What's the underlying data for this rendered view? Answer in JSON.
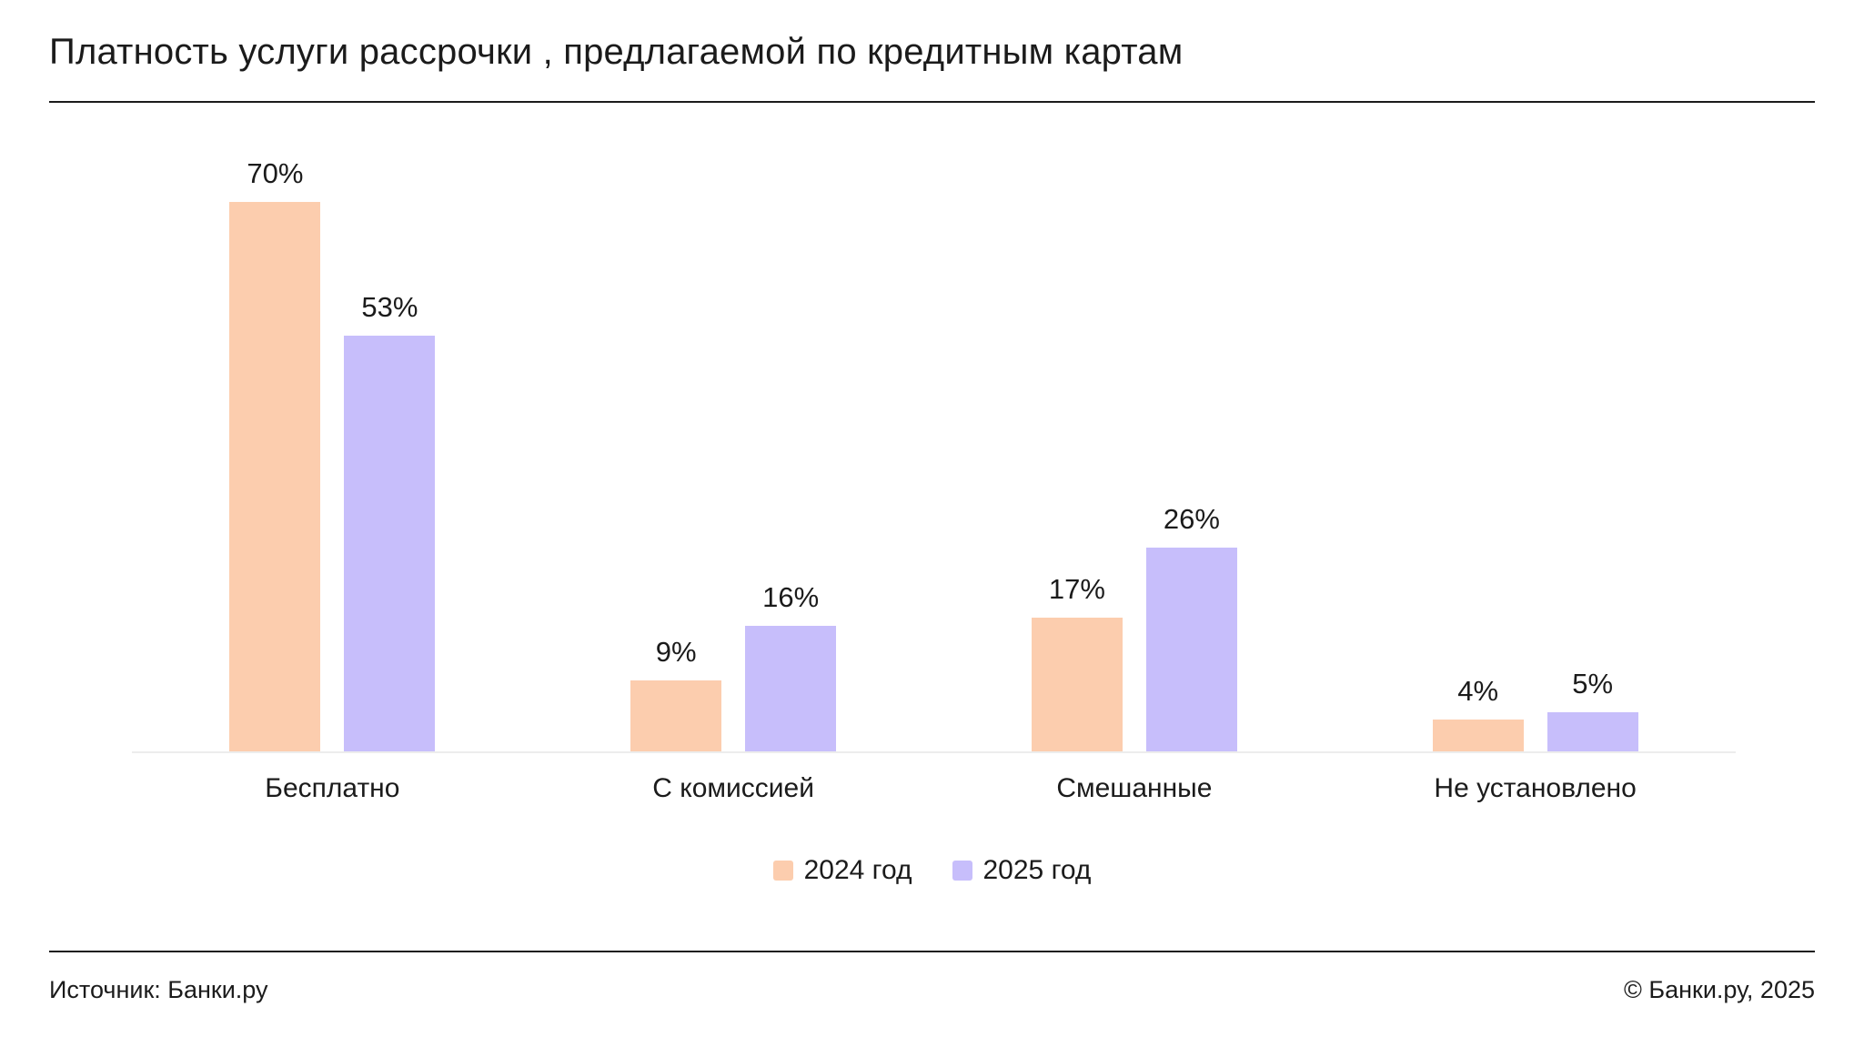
{
  "header": {
    "title": "Платность услуги рассрочки , предлагаемой по кредитным картам"
  },
  "chart_data": {
    "type": "bar",
    "categories": [
      "Бесплатно",
      "С комиссией",
      "Смешанные",
      "Не установлено"
    ],
    "series": [
      {
        "name": "2024 год",
        "color": "#fccdae",
        "values": [
          70,
          9,
          17,
          4
        ]
      },
      {
        "name": "2025 год",
        "color": "#c7befb",
        "values": [
          53,
          16,
          26,
          5
        ]
      }
    ],
    "value_suffix": "%",
    "title": "Платность услуги рассрочки , предлагаемой по кредитным картам",
    "xlabel": "",
    "ylabel": "",
    "ylim": [
      0,
      82
    ],
    "grid": false,
    "legend_position": "bottom"
  },
  "colors": {
    "series_2024": "#fccdae",
    "series_2025": "#c7befb",
    "axis_line": "#ededed",
    "text": "#1b1b1b"
  },
  "footer": {
    "source": "Источник: Банки.ру",
    "copyright": "© Банки.ру, 2025"
  }
}
